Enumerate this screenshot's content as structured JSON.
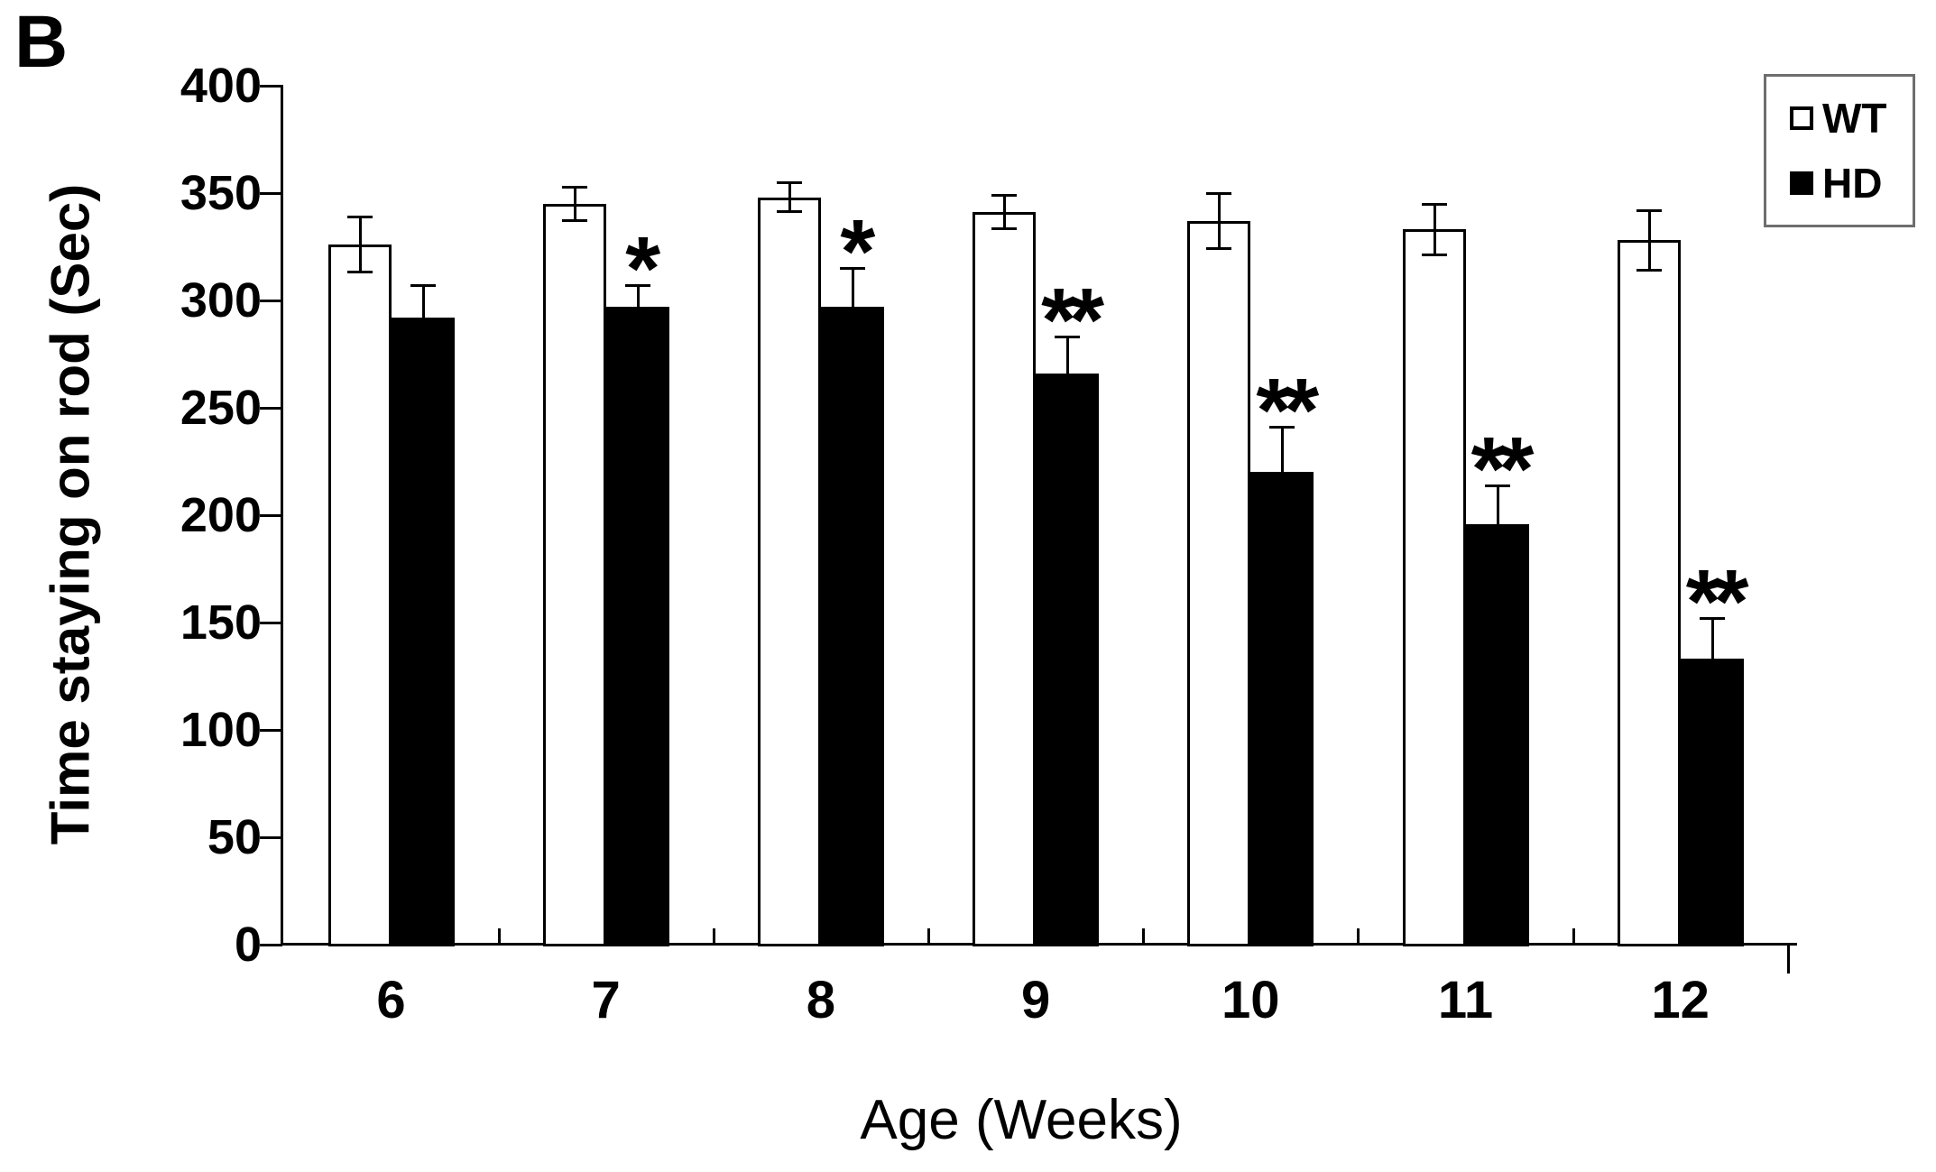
{
  "panel_label": "B",
  "axes": {
    "y_title": "Time staying on rod (Sec)",
    "x_title": "Age (Weeks)",
    "y_ticks": [
      0,
      50,
      100,
      150,
      200,
      250,
      300,
      350,
      400
    ]
  },
  "legend": {
    "position": "top-right",
    "items": [
      {
        "label": "WT",
        "fill": "#ffffff"
      },
      {
        "label": "HD",
        "fill": "#000000"
      }
    ]
  },
  "colors": {
    "bar_outline": "#000000",
    "wt_fill": "#ffffff",
    "hd_fill": "#000000",
    "axis": "#000000",
    "legend_border": "#6e6e6e"
  },
  "chart_data": {
    "type": "bar",
    "title": "",
    "categories": [
      "6",
      "7",
      "8",
      "9",
      "10",
      "11",
      "12"
    ],
    "xlabel": "Age (Weeks)",
    "ylabel": "Time staying on rod (Sec)",
    "ylim": [
      0,
      400
    ],
    "ytick_step": 50,
    "grid": false,
    "legend_position": "top-right",
    "series": [
      {
        "name": "WT",
        "fill": "#ffffff",
        "values": [
          326,
          345,
          348,
          341,
          337,
          333,
          328
        ],
        "errors": [
          13,
          8,
          7,
          8,
          13,
          12,
          14
        ],
        "error_style": "both"
      },
      {
        "name": "HD",
        "fill": "#000000",
        "values": [
          292,
          297,
          297,
          266,
          220,
          196,
          133
        ],
        "errors": [
          15,
          10,
          18,
          17,
          21,
          18,
          19
        ],
        "error_style": "upper"
      }
    ],
    "significance": [
      "",
      "*",
      "*",
      "**",
      "**",
      "**",
      "**"
    ]
  }
}
